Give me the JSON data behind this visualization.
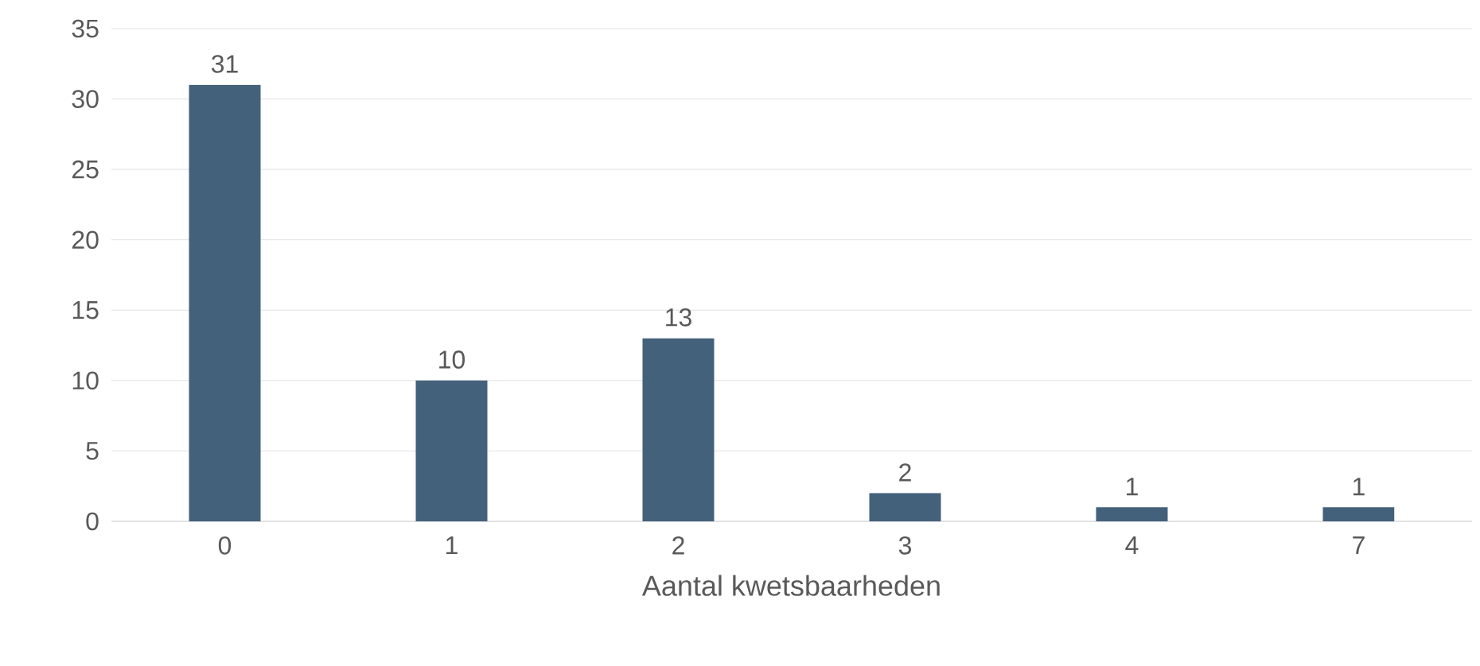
{
  "chart_data": {
    "type": "bar",
    "xlabel": "Aantal kwetsbaarheden",
    "categories": [
      "0",
      "1",
      "2",
      "3",
      "4",
      "7"
    ],
    "values": [
      31,
      10,
      13,
      2,
      1,
      1
    ],
    "color": "#44617b",
    "ylim": [
      0,
      35
    ],
    "yticks": [
      0,
      5,
      10,
      15,
      20,
      25,
      30,
      35
    ],
    "grid": "y",
    "data_labels": true
  }
}
